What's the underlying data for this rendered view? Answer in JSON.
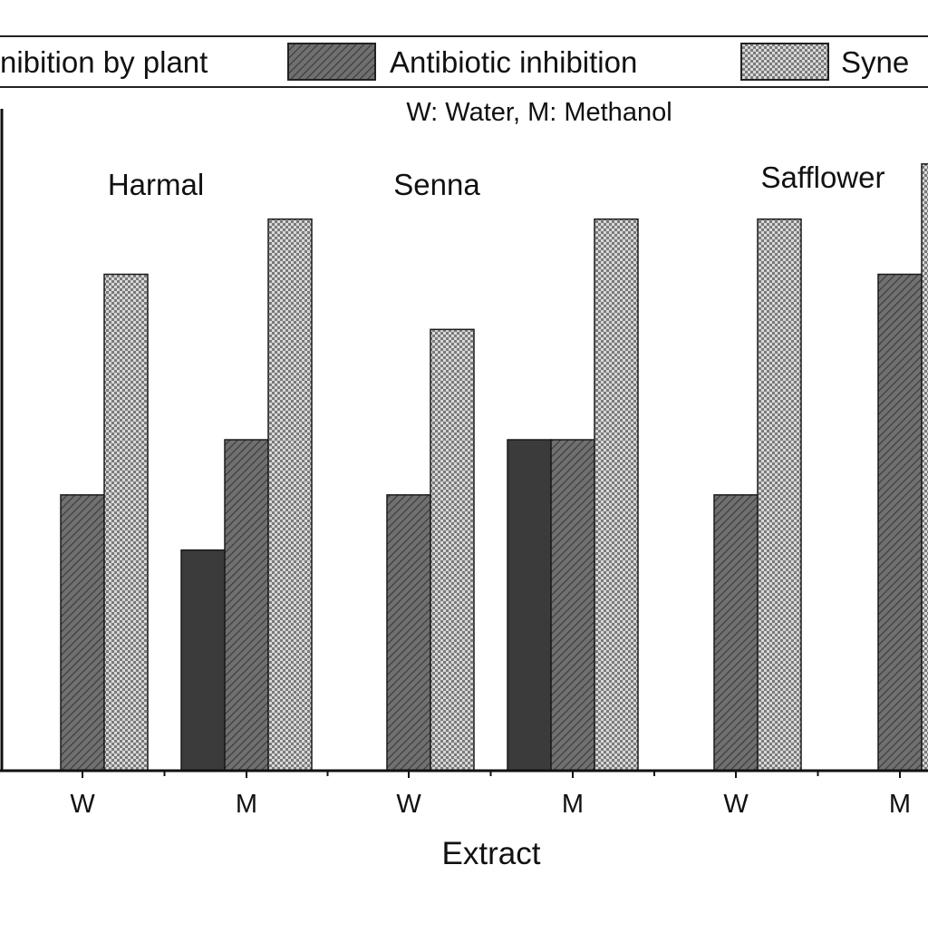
{
  "chart_data": {
    "type": "bar",
    "legend_position": "top",
    "legend": [
      {
        "label": "Inhibition by plant",
        "visible_text": "nibition by plant",
        "color": "#3b3b3b",
        "pattern": "solid"
      },
      {
        "label": "Antibiotic inhibition",
        "visible_text": "Antibiotic inhibition",
        "color": "#6e6e6e",
        "pattern": "diagonal-hatch"
      },
      {
        "label": "Synergy",
        "visible_text": "Syne",
        "color": "#b8b8b8",
        "pattern": "checker"
      }
    ],
    "annotation": "W: Water, M: Methanol",
    "groups": [
      {
        "name": "Harmal",
        "categories": [
          "W",
          "M"
        ]
      },
      {
        "name": "Senna",
        "categories": [
          "W",
          "M"
        ]
      },
      {
        "name": "Safflower",
        "categories": [
          "W",
          "M"
        ]
      }
    ],
    "categories": [
      "W",
      "M",
      "W",
      "M",
      "W",
      "M"
    ],
    "xlabel": "Extract",
    "ylabel": "",
    "ylim": [
      0,
      12
    ],
    "series": [
      {
        "name": "Inhibition by plant",
        "values": [
          0,
          4,
          0,
          6,
          0,
          0
        ]
      },
      {
        "name": "Antibiotic inhibition",
        "values": [
          5,
          6,
          5,
          6,
          5,
          9
        ]
      },
      {
        "name": "Synergy",
        "values": [
          9,
          10,
          8,
          10,
          10,
          11
        ]
      }
    ],
    "grid": false
  }
}
